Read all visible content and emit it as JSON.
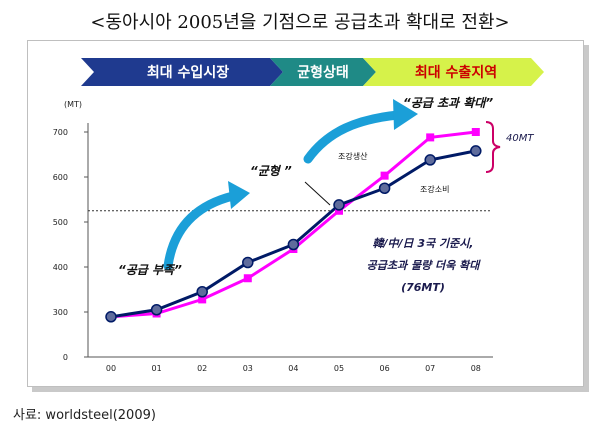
{
  "title": "<동아시아 2005년을 기점으로 공급초과 확대로 전환>",
  "source": "사료: worldsteel(2009)",
  "banner": [
    {
      "label": "최대 수입시장",
      "color": "#1f3a8f"
    },
    {
      "label": "균형상태",
      "color": "#1f8a86"
    },
    {
      "label": "최대 수출지역",
      "color": "#d6f24a"
    }
  ],
  "colors": {
    "production": "#001a66",
    "consumption": "#ff00ff",
    "arrow": "#1b9fd8",
    "accent": "#cc0066",
    "note": "#1a1a4d"
  },
  "chart_data": {
    "type": "line",
    "y_unit": "(MT)",
    "categories": [
      "00",
      "01",
      "02",
      "03",
      "04",
      "05",
      "06",
      "07",
      "08"
    ],
    "ylim": [
      0,
      700
    ],
    "yticks": [
      0,
      300,
      400,
      500,
      600,
      700
    ],
    "series": [
      {
        "name": "조강생산",
        "values": [
          268,
          305,
          345,
          410,
          450,
          538,
          575,
          638,
          658
        ]
      },
      {
        "name": "조강소비",
        "values": [
          268,
          290,
          328,
          375,
          440,
          525,
          603,
          688,
          700
        ]
      }
    ],
    "reference_line": 525
  },
  "annotations": {
    "supply_short": "“공급 부족”",
    "balance": "“균형 ”",
    "supply_excess": "“공급 초과 확대”",
    "gap": "40MT",
    "note_lines": [
      "韓/中/日 3국 기준시,",
      "공급초과 물량 더욱 확대",
      "(76MT)"
    ]
  }
}
